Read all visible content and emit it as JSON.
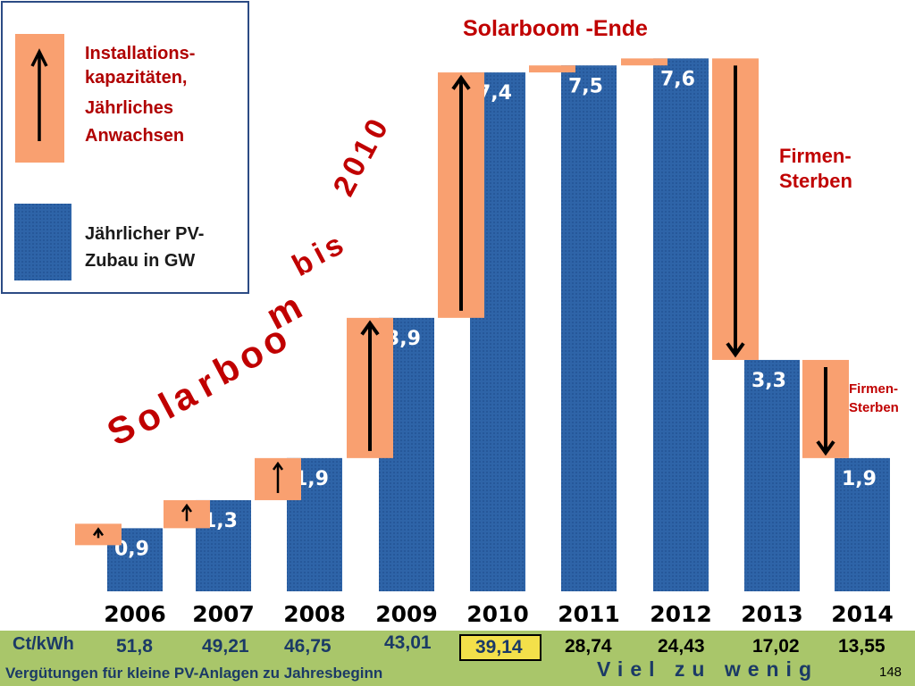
{
  "chart_data": {
    "type": "bar",
    "categories": [
      "2006",
      "2007",
      "2008",
      "2009",
      "2010",
      "2011",
      "2012",
      "2013",
      "2014"
    ],
    "values": [
      0.9,
      1.3,
      1.9,
      3.9,
      7.4,
      7.5,
      7.6,
      3.3,
      1.9
    ],
    "value_labels": [
      "0,9",
      "1,3",
      "1,9",
      "3,9",
      "7,4",
      "7,5",
      "7,6",
      "3,3",
      "1,9"
    ],
    "title": "Solarboom -Ende",
    "ylim": [
      0,
      8
    ],
    "grid": false,
    "legend": {
      "placement": "top-left",
      "entries": [
        {
          "lines": [
            "Installations-",
            "kapazitäten,",
            "Jährliches",
            "Anwachsen"
          ],
          "color": "#f9a070"
        },
        {
          "lines": [
            "Jährlicher PV-",
            "Zubau in GW"
          ],
          "color": "#2e64a8"
        }
      ]
    },
    "annotations": {
      "diagonal_text": [
        "S",
        "o",
        "l",
        "a",
        "r",
        "b",
        "o",
        "o",
        "m",
        "b",
        "i",
        "s",
        "2",
        "0",
        "1",
        "0"
      ],
      "firmen_sterben_large": [
        "Firmen-",
        "Sterben"
      ],
      "firmen_sterben_small": [
        "Firmen-",
        "Sterben"
      ]
    },
    "changes": [
      {
        "from": 0,
        "to": 0.9,
        "direction": "up"
      },
      {
        "from": 0.9,
        "to": 1.3,
        "direction": "up"
      },
      {
        "from": 1.3,
        "to": 1.9,
        "direction": "up"
      },
      {
        "from": 1.9,
        "to": 3.9,
        "direction": "up"
      },
      {
        "from": 3.9,
        "to": 7.4,
        "direction": "up"
      },
      {
        "from": 7.4,
        "to": 7.5,
        "direction": "up"
      },
      {
        "from": 7.5,
        "to": 7.6,
        "direction": "up"
      },
      {
        "from": 7.6,
        "to": 3.3,
        "direction": "down"
      },
      {
        "from": 3.3,
        "to": 1.9,
        "direction": "down"
      }
    ],
    "colors": {
      "bar": "#2e64a8",
      "change": "#f9a070",
      "text_red": "#c00000"
    }
  },
  "price_row": {
    "label": "Ct/kWh",
    "values": [
      "51,8",
      "49,21",
      "46,75",
      "43,01",
      "39,14",
      "28,74",
      "24,43",
      "17,02",
      "13,55"
    ],
    "highlight_index": 4,
    "note": "Vergütungen für kleine PV-Anlagen zu Jahresbeginn",
    "warning": "Viel zu wenig",
    "page": "148"
  }
}
